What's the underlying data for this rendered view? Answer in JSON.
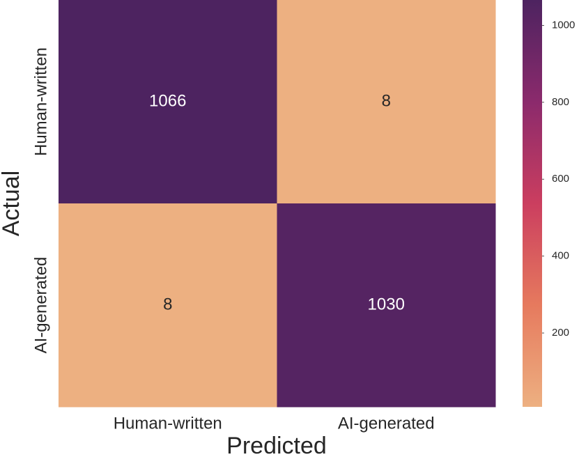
{
  "chart_data": {
    "type": "heatmap",
    "x_categories": [
      "Human-written",
      "AI-generated"
    ],
    "y_categories": [
      "Human-written",
      "AI-generated"
    ],
    "values": [
      [
        1066,
        8
      ],
      [
        8,
        1030
      ]
    ],
    "xlabel": "Predicted",
    "ylabel": "Actual",
    "clim": [
      8,
      1066
    ],
    "colorbar_ticks": [
      200,
      400,
      600,
      800,
      1000
    ],
    "colormap": [
      "#edb081",
      "#e67a5e",
      "#cb3e5f",
      "#8b2a6c",
      "#4d2360"
    ]
  }
}
